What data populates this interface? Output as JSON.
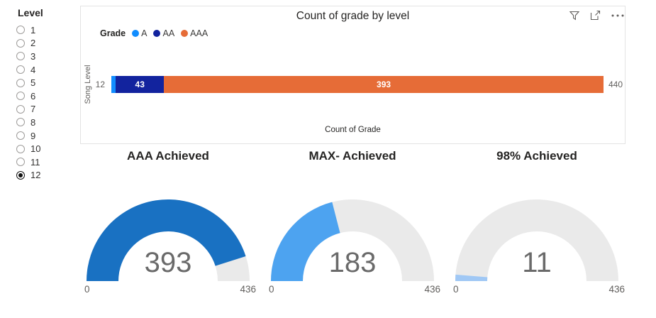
{
  "sidebar": {
    "title": "Level",
    "options": [
      "1",
      "2",
      "3",
      "4",
      "5",
      "6",
      "7",
      "8",
      "9",
      "10",
      "11",
      "12"
    ],
    "selected": "12"
  },
  "panel_header_icons": [
    "filter-icon",
    "focus-mode-icon",
    "more-options-icon"
  ],
  "colors": {
    "grade_a": "#118DFF",
    "grade_aa": "#12239E",
    "grade_aaa": "#E66C37",
    "gauge_track": "#EAEAEA",
    "text_dark": "#252423",
    "text_gray": "#605E5C"
  },
  "chart_data": [
    {
      "type": "bar",
      "orientation": "horizontal",
      "stacked": true,
      "title": "Count of grade by level",
      "legend_title": "Grade",
      "legend_position": "top-left",
      "categories": [
        "12"
      ],
      "series": [
        {
          "name": "A",
          "values": [
            4
          ],
          "color": "#118DFF"
        },
        {
          "name": "AA",
          "values": [
            43
          ],
          "color": "#12239E"
        },
        {
          "name": "AAA",
          "values": [
            393
          ],
          "color": "#E66C37"
        }
      ],
      "total": 440,
      "xlabel": "Count of Grade",
      "ylabel": "Song Level",
      "xlim": [
        0,
        440
      ],
      "grid": false
    },
    {
      "type": "gauge",
      "title": "AAA Achieved",
      "value": 393,
      "min": 0,
      "max": 436,
      "fill_color": "#1971C2",
      "track_color": "#EAEAEA"
    },
    {
      "type": "gauge",
      "title": "MAX- Achieved",
      "value": 183,
      "min": 0,
      "max": 436,
      "fill_color": "#4DA3F0",
      "track_color": "#EAEAEA"
    },
    {
      "type": "gauge",
      "title": "98% Achieved",
      "value": 11,
      "min": 0,
      "max": 436,
      "fill_color": "#A0C8F5",
      "track_color": "#EAEAEA"
    }
  ]
}
